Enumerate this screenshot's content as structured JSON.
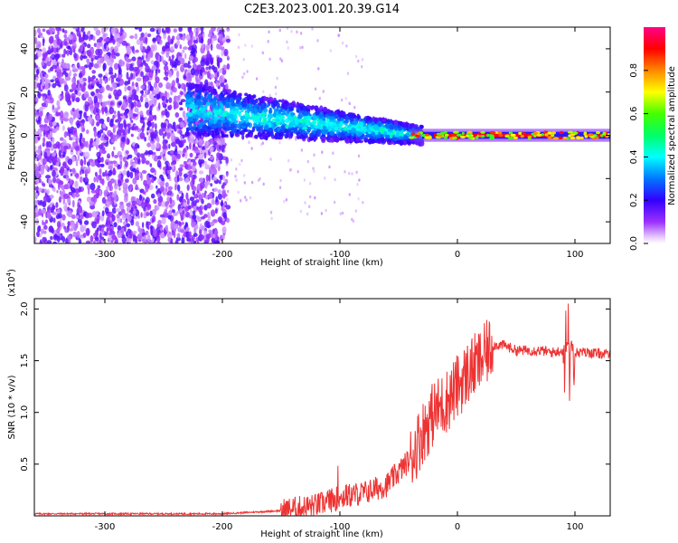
{
  "title": "C2E3.2023.001.20.39.G14",
  "chart_data": [
    {
      "type": "heatmap",
      "xlabel": "Height of straight line (km)",
      "ylabel": "Frequency (Hz)",
      "xlim": [
        -360,
        130
      ],
      "ylim": [
        -50,
        50
      ],
      "xticks": [
        -300,
        -200,
        -100,
        0,
        100
      ],
      "yticks": [
        40,
        20,
        0,
        -20,
        -40
      ],
      "colorbar": {
        "label": "Normalized spectral amplitude",
        "range": [
          0,
          1
        ],
        "ticks": [
          0.0,
          0.2,
          0.4,
          0.6,
          0.8
        ],
        "tick_labels": [
          "0.0",
          "0.2",
          "0.4",
          "0.6",
          "0.8"
        ]
      },
      "regions": [
        {
          "x_range": [
            -360,
            -200
          ],
          "freq_range": [
            -50,
            50
          ],
          "amplitude": 0.12
        },
        {
          "x_range": [
            -200,
            -100
          ],
          "freq_range": [
            -15,
            20
          ],
          "amplitude": 0.3
        },
        {
          "x_range": [
            -100,
            -30
          ],
          "freq_range": [
            -8,
            8
          ],
          "amplitude": 0.4
        },
        {
          "x_range": [
            -30,
            130
          ],
          "freq_range": [
            -2,
            2
          ],
          "amplitude": 0.95
        }
      ]
    },
    {
      "type": "line",
      "xlabel": "Height of straight line (km)",
      "ylabel": "SNR (10 * v/v)",
      "scale_label": "(x10",
      "scale_exponent": "4",
      "scale_suffix": ")",
      "xlim": [
        -360,
        130
      ],
      "ylim": [
        0,
        2.1
      ],
      "xticks": [
        -300,
        -200,
        -100,
        0,
        100
      ],
      "yticks": [
        0.5,
        1.0,
        1.5,
        2.0
      ],
      "ytick_labels": [
        "0.5",
        "1.0",
        "1.5",
        "2.0"
      ],
      "color": "#ee3333",
      "series": [
        {
          "x": [
            -360,
            -300,
            -250,
            -200,
            -150,
            -120,
            -100,
            -80,
            -60,
            -40,
            -30,
            -20,
            -10,
            0,
            10,
            20,
            30,
            40,
            50,
            60,
            70,
            80,
            90,
            95,
            100,
            110,
            120,
            130
          ],
          "values": [
            0.02,
            0.02,
            0.02,
            0.02,
            0.05,
            0.1,
            0.18,
            0.22,
            0.3,
            0.55,
            0.8,
            1.0,
            1.1,
            1.25,
            1.4,
            1.5,
            1.65,
            1.65,
            1.6,
            1.6,
            1.6,
            1.58,
            1.6,
            1.7,
            1.58,
            1.58,
            1.57,
            1.56
          ]
        }
      ]
    }
  ]
}
